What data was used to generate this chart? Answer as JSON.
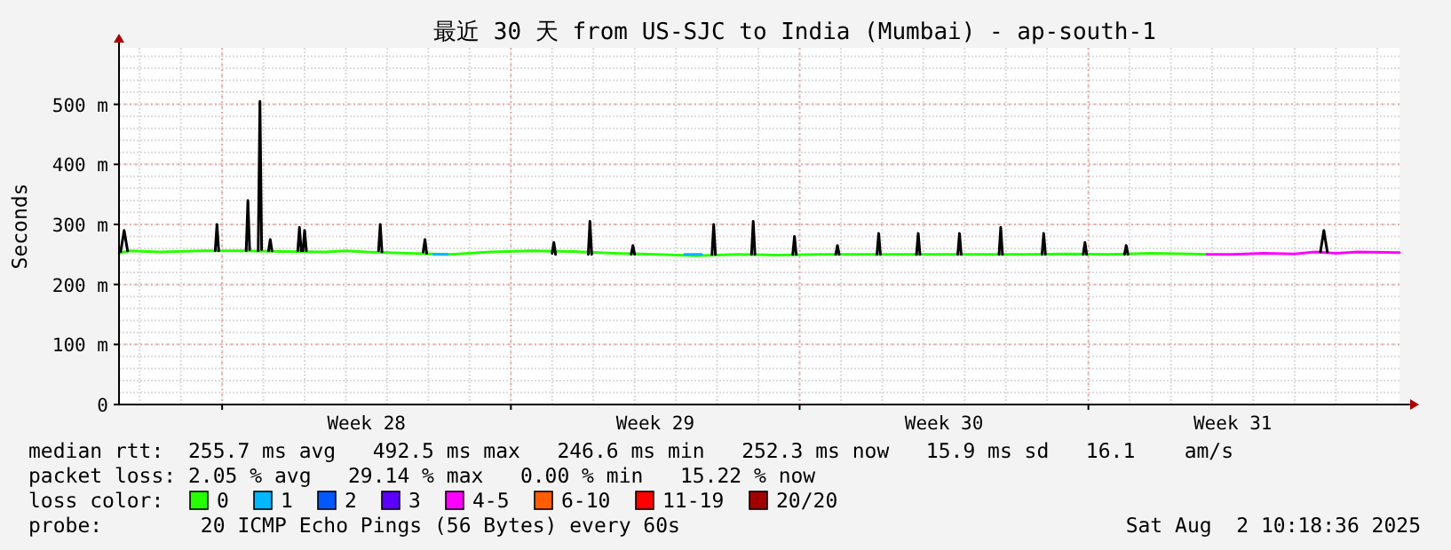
{
  "chart_data": {
    "type": "line",
    "title": "最近 30 天 from US-SJC to India (Mumbai) - ap-south-1",
    "ylabel": "Seconds",
    "xlim": [
      "2025-07-03T12:00",
      "2025-08-03T13:00"
    ],
    "xticks": [
      {
        "value": "2025-07-06T00:00",
        "label": null
      },
      {
        "value": "2025-07-09T12:00",
        "label": "Week 28"
      },
      {
        "value": "2025-07-13T00:00",
        "label": null
      },
      {
        "value": "2025-07-16T12:00",
        "label": "Week 29"
      },
      {
        "value": "2025-07-20T00:00",
        "label": null
      },
      {
        "value": "2025-07-23T12:00",
        "label": "Week 30"
      },
      {
        "value": "2025-07-27T00:00",
        "label": null
      },
      {
        "value": "2025-07-30T12:00",
        "label": "Week 31"
      }
    ],
    "ylim": [
      0,
      594
    ],
    "yticks": [
      {
        "value": 0,
        "label": "0"
      },
      {
        "value": 100,
        "label": "100 m"
      },
      {
        "value": 200,
        "label": "200 m"
      },
      {
        "value": 300,
        "label": "300 m"
      },
      {
        "value": 400,
        "label": "400 m"
      },
      {
        "value": 500,
        "label": "500 m"
      }
    ],
    "grid": true,
    "legend": "bottom",
    "legend_title": "loss color:",
    "marker": "none",
    "line_style": "solid",
    "series": [
      {
        "name": "0",
        "color": "#26ff00",
        "x": [
          "2025-07-03T12:00",
          "2025-07-03T18:00",
          "2025-07-04T12:00",
          "2025-07-05T12:00",
          "2025-07-06T12:00",
          "2025-07-07T12:00",
          "2025-07-08T12:00",
          "2025-07-09T00:00",
          "2025-07-09T12:00",
          "2025-07-10T12:00",
          "2025-07-11T12:00",
          "2025-07-12T12:00",
          "2025-07-13T12:00",
          "2025-07-14T12:00",
          "2025-07-15T12:00",
          "2025-07-16T12:00",
          "2025-07-17T12:00",
          "2025-07-18T12:00",
          "2025-07-19T12:00",
          "2025-07-20T12:00",
          "2025-07-21T12:00",
          "2025-07-22T12:00",
          "2025-07-23T12:00",
          "2025-07-24T12:00",
          "2025-07-25T12:00",
          "2025-07-26T12:00",
          "2025-07-27T12:00",
          "2025-07-28T12:00",
          "2025-07-29T12:00",
          "2025-07-29T21:00"
        ],
        "values": [
          252,
          256,
          254,
          256,
          256,
          255,
          254,
          256,
          254,
          252,
          250,
          254,
          256,
          255,
          252,
          250,
          248,
          250,
          249,
          250,
          250,
          250,
          250,
          250,
          250,
          251,
          250,
          252,
          251,
          250
        ]
      },
      {
        "name": "1",
        "color": "#00b8ff",
        "x": [
          "2025-07-11T03:00",
          "2025-07-11T11:00",
          "2025-07-12T00:00",
          "2025-07-17T05:00",
          "2025-07-17T15:00"
        ],
        "values": [
          250,
          250,
          null,
          250,
          250
        ]
      },
      {
        "name": "2",
        "color": "#0059ff"
      },
      {
        "name": "3",
        "color": "#5e00ff"
      },
      {
        "name": "4-5",
        "color": "#ff00ff",
        "x": [
          "2025-07-29T21:00",
          "2025-07-30T12:00",
          "2025-07-31T06:00",
          "2025-08-01T00:00",
          "2025-08-01T12:00",
          "2025-08-02T00:00",
          "2025-08-02T12:00",
          "2025-08-03T13:00"
        ],
        "values": [
          250,
          250,
          252,
          251,
          254,
          252,
          254,
          253
        ]
      },
      {
        "name": "6-10",
        "color": "#ff5e00"
      },
      {
        "name": "11-19",
        "color": "#ff0000"
      },
      {
        "name": "20/20",
        "color": "#a10000"
      },
      {
        "color": "#000000",
        "x": [
          "2025-07-03T13:00",
          "2025-07-03T15:00",
          "2025-07-03T17:00",
          "2025-07-03T18:00",
          "2025-07-05T20:00",
          "2025-07-05T21:00",
          "2025-07-05T22:00",
          "2025-07-05T23:00",
          "2025-07-06T14:00",
          "2025-07-06T15:00",
          "2025-07-06T16:00",
          "2025-07-06T17:00",
          "2025-07-06T21:00",
          "2025-07-06T22:00",
          "2025-07-06T23:00",
          "2025-07-07T00:00",
          "2025-07-07T03:00",
          "2025-07-07T04:00",
          "2025-07-07T05:00",
          "2025-07-07T06:00",
          "2025-07-07T20:00",
          "2025-07-07T21:00",
          "2025-07-07T22:00",
          "2025-07-07T22:30",
          "2025-07-07T23:00",
          "2025-07-08T00:00",
          "2025-07-08T01:00",
          "2025-07-08T02:00",
          "2025-07-09T19:00",
          "2025-07-09T20:00",
          "2025-07-09T21:00",
          "2025-07-09T22:00",
          "2025-07-10T21:00",
          "2025-07-10T22:00",
          "2025-07-10T23:00",
          "2025-07-11T00:00",
          "2025-07-14T00:00",
          "2025-07-14T01:00",
          "2025-07-14T02:00",
          "2025-07-14T03:00",
          "2025-07-14T21:00",
          "2025-07-14T22:00",
          "2025-07-14T23:00",
          "2025-07-15T00:00",
          "2025-07-15T22:00",
          "2025-07-15T23:00",
          "2025-07-16T00:00",
          "2025-07-16T01:00",
          "2025-07-17T21:00",
          "2025-07-17T22:00",
          "2025-07-17T23:00",
          "2025-07-18T00:00",
          "2025-07-18T20:00",
          "2025-07-18T21:00",
          "2025-07-18T22:00",
          "2025-07-18T23:00",
          "2025-07-19T20:00",
          "2025-07-19T21:00",
          "2025-07-19T22:00",
          "2025-07-19T23:00",
          "2025-07-20T21:00",
          "2025-07-20T22:00",
          "2025-07-20T23:00",
          "2025-07-21T00:00",
          "2025-07-21T21:00",
          "2025-07-21T22:00",
          "2025-07-21T23:00",
          "2025-07-22T00:00",
          "2025-07-22T20:00",
          "2025-07-22T21:00",
          "2025-07-22T22:00",
          "2025-07-22T23:00",
          "2025-07-23T20:00",
          "2025-07-23T21:00",
          "2025-07-23T22:00",
          "2025-07-23T23:00",
          "2025-07-24T20:00",
          "2025-07-24T21:00",
          "2025-07-24T22:00",
          "2025-07-24T23:00",
          "2025-07-25T21:00",
          "2025-07-25T22:00",
          "2025-07-25T23:00",
          "2025-07-26T00:00",
          "2025-07-26T21:00",
          "2025-07-26T22:00",
          "2025-07-26T23:00",
          "2025-07-27T00:00",
          "2025-07-27T21:00",
          "2025-07-27T22:00",
          "2025-07-27T23:00",
          "2025-07-28T00:00",
          "2025-08-01T15:00",
          "2025-08-01T17:00",
          "2025-08-01T19:00"
        ],
        "values": [
          255,
          290,
          256,
          null,
          256,
          300,
          256,
          null,
          256,
          340,
          258,
          null,
          256,
          505,
          258,
          null,
          256,
          275,
          256,
          null,
          256,
          295,
          256,
          null,
          256,
          290,
          256,
          null,
          256,
          300,
          254,
          null,
          254,
          275,
          252,
          null,
          252,
          270,
          250,
          null,
          250,
          305,
          250,
          null,
          250,
          265,
          250,
          null,
          250,
          300,
          250,
          null,
          250,
          305,
          250,
          null,
          250,
          280,
          250,
          null,
          250,
          265,
          250,
          null,
          250,
          285,
          250,
          null,
          250,
          285,
          250,
          null,
          250,
          285,
          250,
          null,
          250,
          295,
          250,
          null,
          250,
          285,
          250,
          null,
          250,
          270,
          250,
          null,
          250,
          265,
          250,
          null,
          254,
          290,
          254
        ]
      }
    ],
    "annotations": [
      "median rtt:  255.7 ms avg   492.5 ms max   246.6 ms min   252.3 ms now   15.9 ms sd   16.1    am/s",
      "packet loss: 2.05 % avg   29.14 % max   0.00 % min   15.22 % now",
      "probe:        20 ICMP Echo Pings (56 Bytes) every 60s",
      "Sat Aug  2 10:18:36 2025"
    ]
  }
}
